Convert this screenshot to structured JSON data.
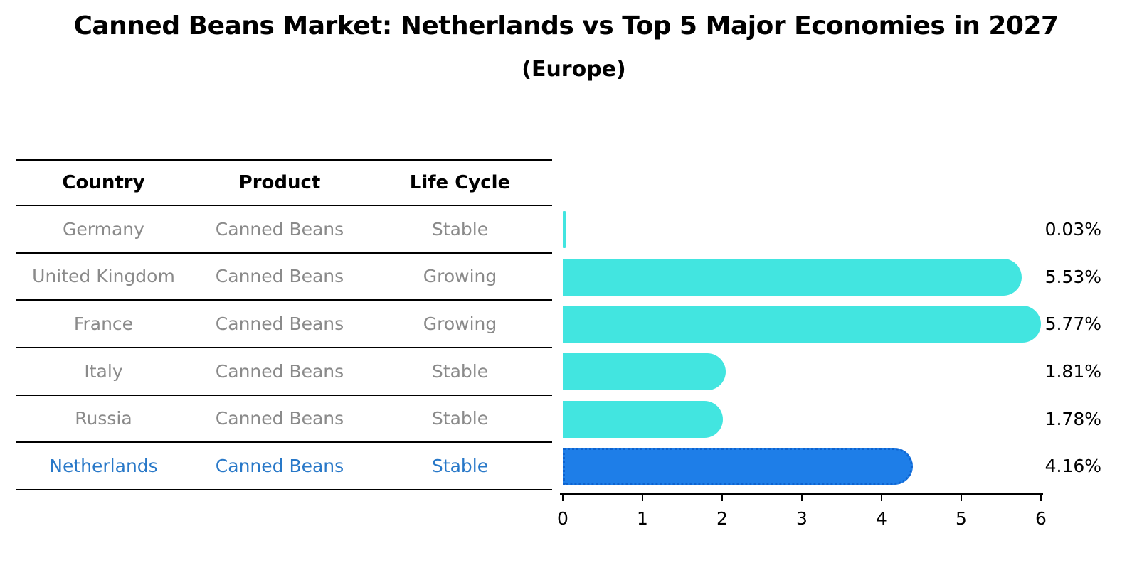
{
  "title": "Canned Beans Market: Netherlands vs Top 5 Major Economies in 2027",
  "subtitle": "(Europe)",
  "table": {
    "headers": [
      "Country",
      "Product",
      "Life Cycle"
    ],
    "rows": [
      {
        "country": "Germany",
        "product": "Canned Beans",
        "life_cycle": "Stable",
        "highlight": false
      },
      {
        "country": "United Kingdom",
        "product": "Canned Beans",
        "life_cycle": "Growing",
        "highlight": false
      },
      {
        "country": "France",
        "product": "Canned Beans",
        "life_cycle": "Growing",
        "highlight": false
      },
      {
        "country": "Italy",
        "product": "Canned Beans",
        "life_cycle": "Stable",
        "highlight": false
      },
      {
        "country": "Russia",
        "product": "Canned Beans",
        "life_cycle": "Stable",
        "highlight": true,
        "highlight_note": null
      },
      {
        "country": "Netherlands",
        "product": "Canned Beans",
        "life_cycle": "Stable",
        "highlight": true
      }
    ]
  },
  "chart_data": {
    "type": "bar",
    "orientation": "horizontal",
    "categories": [
      "Germany",
      "United Kingdom",
      "France",
      "Italy",
      "Russia",
      "Netherlands"
    ],
    "values": [
      0.03,
      5.53,
      5.77,
      1.81,
      1.78,
      4.16
    ],
    "value_labels": [
      "0.03%",
      "5.53%",
      "5.77%",
      "1.81%",
      "1.78%",
      "4.16%"
    ],
    "title": "Canned Beans Market: Netherlands vs Top 5 Major Economies in 2027",
    "subtitle": "(Europe)",
    "xlabel": "",
    "ylabel": "",
    "xlim": [
      0,
      6
    ],
    "x_ticks": [
      0,
      1,
      2,
      3,
      4,
      5,
      6
    ],
    "grid": false,
    "legend": false,
    "highlight_index": 5,
    "colors": {
      "bar": "#42e5e0",
      "highlight_bar": "#1e7ee8",
      "highlight_border": "#0e63cf",
      "highlight_text": "#2878c8",
      "row_text": "#8a8a8a",
      "axis": "#000000"
    }
  }
}
